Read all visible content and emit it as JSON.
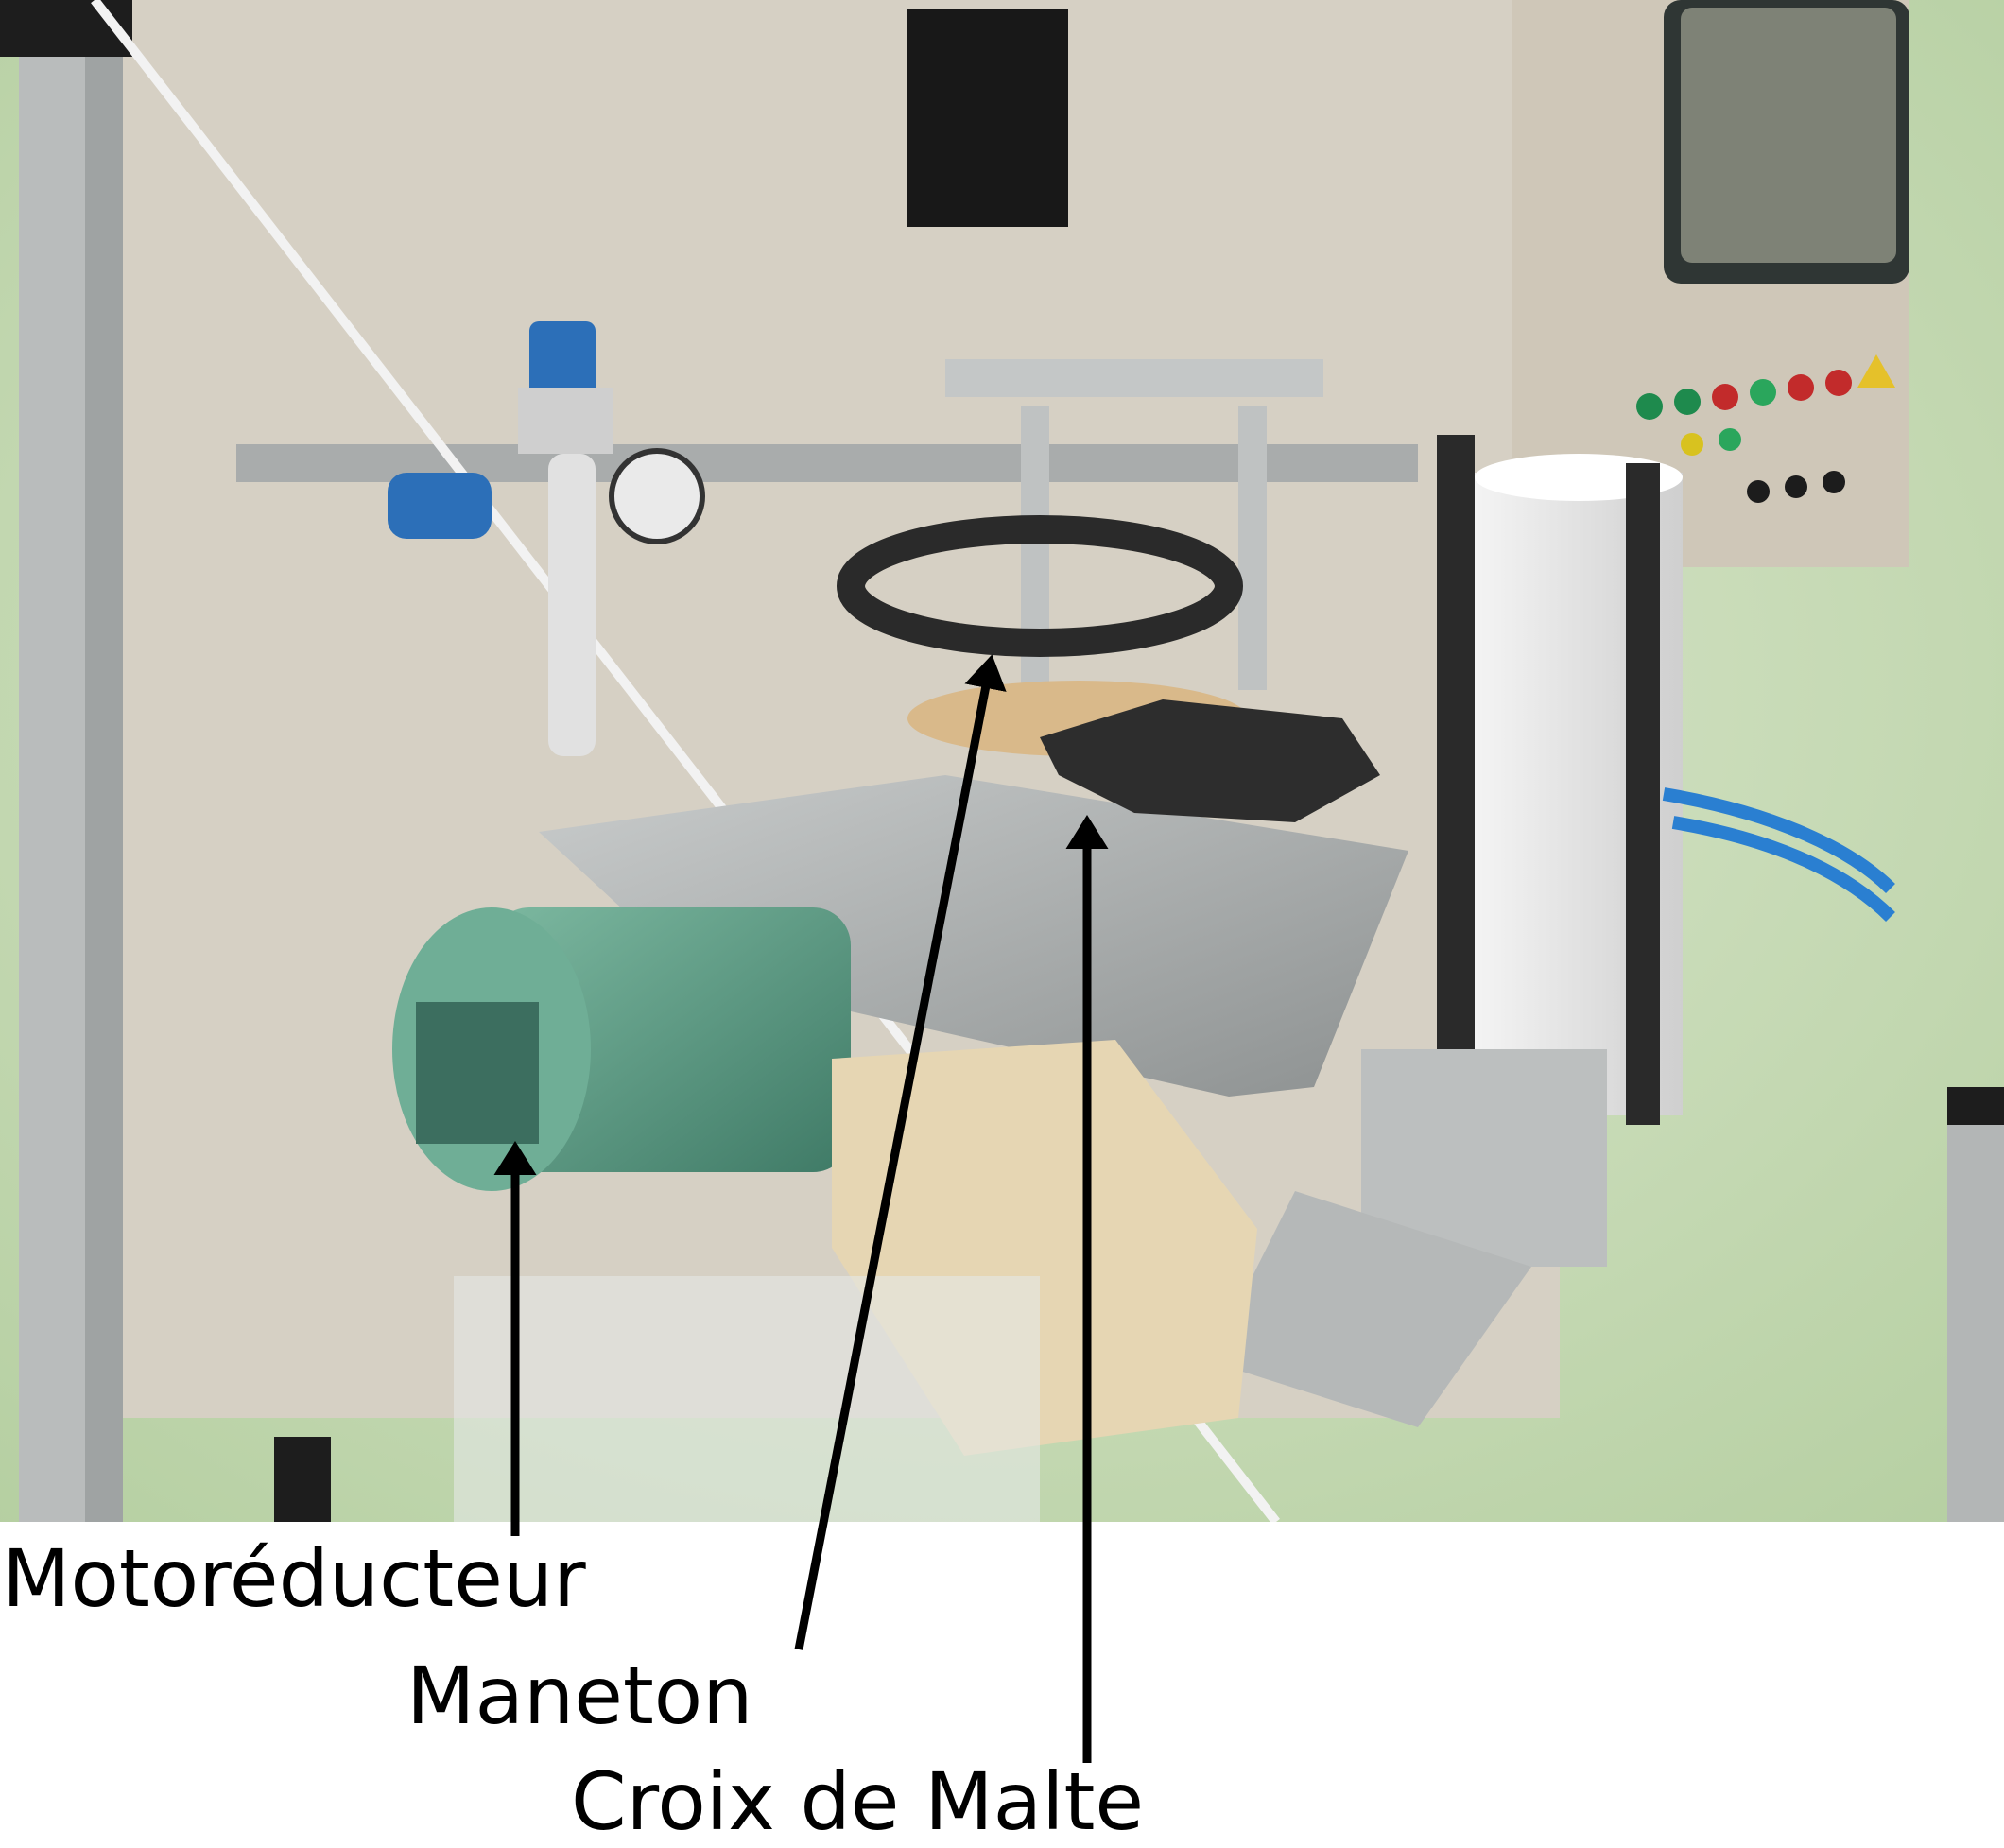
{
  "labels": {
    "motoreducteur": "Motoréducteur",
    "maneton": "Maneton",
    "croix_de_malte": "Croix de Malte"
  },
  "colors": {
    "background": "#ffffff",
    "backdrop_green": "#cfe0bd",
    "motor_green": "#5d9c85",
    "frame_aluminium": "#b9bcbc",
    "cabinet_beige": "#d9d2c6",
    "arrow": "#000000"
  },
  "icons": {
    "arrow": "arrow-icon"
  }
}
